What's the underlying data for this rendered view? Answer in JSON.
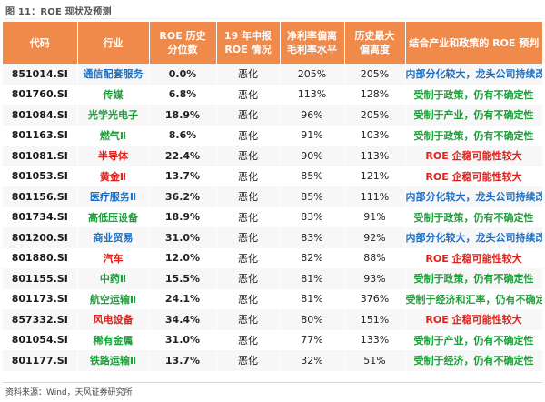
{
  "figure_title": "图 11：ROE 现状及预测",
  "columns": {
    "code": "代码",
    "industry": "行业",
    "roe_pct_line1": "ROE 历史",
    "roe_pct_line2": "分位数",
    "h1_line1": "19 年中报",
    "h1_line2": "ROE 情况",
    "ratio_line1": "净利率偏离",
    "ratio_line2": "毛利率水平",
    "dev_line1": "历史最大",
    "dev_line2": "偏离度",
    "outlook": "结合产业和政策的 ROE 预判"
  },
  "colors": {
    "header_bg": "#f08a4b",
    "blue": "#1f6fc0",
    "green": "#1e9e3a",
    "red": "#e0211b"
  },
  "rows": [
    {
      "code": "851014.SI",
      "industry": "通信配套服务",
      "roe_pct": "0.0%",
      "h1": "恶化",
      "ratio": "205%",
      "dev": "205%",
      "outlook": "内部分化较大，龙头公司持续改善",
      "color": "blue"
    },
    {
      "code": "801760.SI",
      "industry": "传媒",
      "roe_pct": "6.8%",
      "h1": "恶化",
      "ratio": "113%",
      "dev": "128%",
      "outlook": "受制于政策，仍有不确定性",
      "color": "green"
    },
    {
      "code": "801084.SI",
      "industry": "光学光电子",
      "roe_pct": "18.9%",
      "h1": "恶化",
      "ratio": "96%",
      "dev": "205%",
      "outlook": "受制于产业，仍有不确定性",
      "color": "green"
    },
    {
      "code": "801163.SI",
      "industry": "燃气Ⅱ",
      "roe_pct": "8.6%",
      "h1": "恶化",
      "ratio": "91%",
      "dev": "103%",
      "outlook": "受制于政策，仍有不确定性",
      "color": "green"
    },
    {
      "code": "801081.SI",
      "industry": "半导体",
      "roe_pct": "22.4%",
      "h1": "恶化",
      "ratio": "90%",
      "dev": "113%",
      "outlook": "ROE 企稳可能性较大",
      "color": "red"
    },
    {
      "code": "801053.SI",
      "industry": "黄金Ⅱ",
      "roe_pct": "13.7%",
      "h1": "恶化",
      "ratio": "85%",
      "dev": "121%",
      "outlook": "ROE 企稳可能性较大",
      "color": "red"
    },
    {
      "code": "801156.SI",
      "industry": "医疗服务Ⅱ",
      "roe_pct": "36.2%",
      "h1": "恶化",
      "ratio": "85%",
      "dev": "111%",
      "outlook": "内部分化较大，龙头公司持续改善",
      "color": "blue"
    },
    {
      "code": "801734.SI",
      "industry": "高低压设备",
      "roe_pct": "18.9%",
      "h1": "恶化",
      "ratio": "83%",
      "dev": "91%",
      "outlook": "受制于政策，仍有不确定性",
      "color": "green"
    },
    {
      "code": "801200.SI",
      "industry": "商业贸易",
      "roe_pct": "31.0%",
      "h1": "恶化",
      "ratio": "83%",
      "dev": "92%",
      "outlook": "内部分化较大，龙头公司持续改善",
      "color": "blue"
    },
    {
      "code": "801880.SI",
      "industry": "汽车",
      "roe_pct": "12.0%",
      "h1": "恶化",
      "ratio": "82%",
      "dev": "88%",
      "outlook": "ROE 企稳可能性较大",
      "color": "red"
    },
    {
      "code": "801155.SI",
      "industry": "中药Ⅱ",
      "roe_pct": "15.5%",
      "h1": "恶化",
      "ratio": "81%",
      "dev": "93%",
      "outlook": "受制于政策，仍有不确定性",
      "color": "green"
    },
    {
      "code": "801173.SI",
      "industry": "航空运输Ⅱ",
      "roe_pct": "24.1%",
      "h1": "恶化",
      "ratio": "81%",
      "dev": "376%",
      "outlook": "受制于经济和汇率，仍有不确定性",
      "color": "green"
    },
    {
      "code": "857332.SI",
      "industry": "风电设备",
      "roe_pct": "34.4%",
      "h1": "恶化",
      "ratio": "80%",
      "dev": "151%",
      "outlook": "ROE 企稳可能性较大",
      "color": "red"
    },
    {
      "code": "801054.SI",
      "industry": "稀有金属",
      "roe_pct": "31.0%",
      "h1": "恶化",
      "ratio": "77%",
      "dev": "133%",
      "outlook": "受制于产业，仍有不确定性",
      "color": "green"
    },
    {
      "code": "801177.SI",
      "industry": "铁路运输Ⅱ",
      "roe_pct": "13.7%",
      "h1": "恶化",
      "ratio": "32%",
      "dev": "51%",
      "outlook": "受制于经济，仍有不确定性",
      "color": "green"
    }
  ],
  "source": "资料来源：Wind，天风证券研究所"
}
